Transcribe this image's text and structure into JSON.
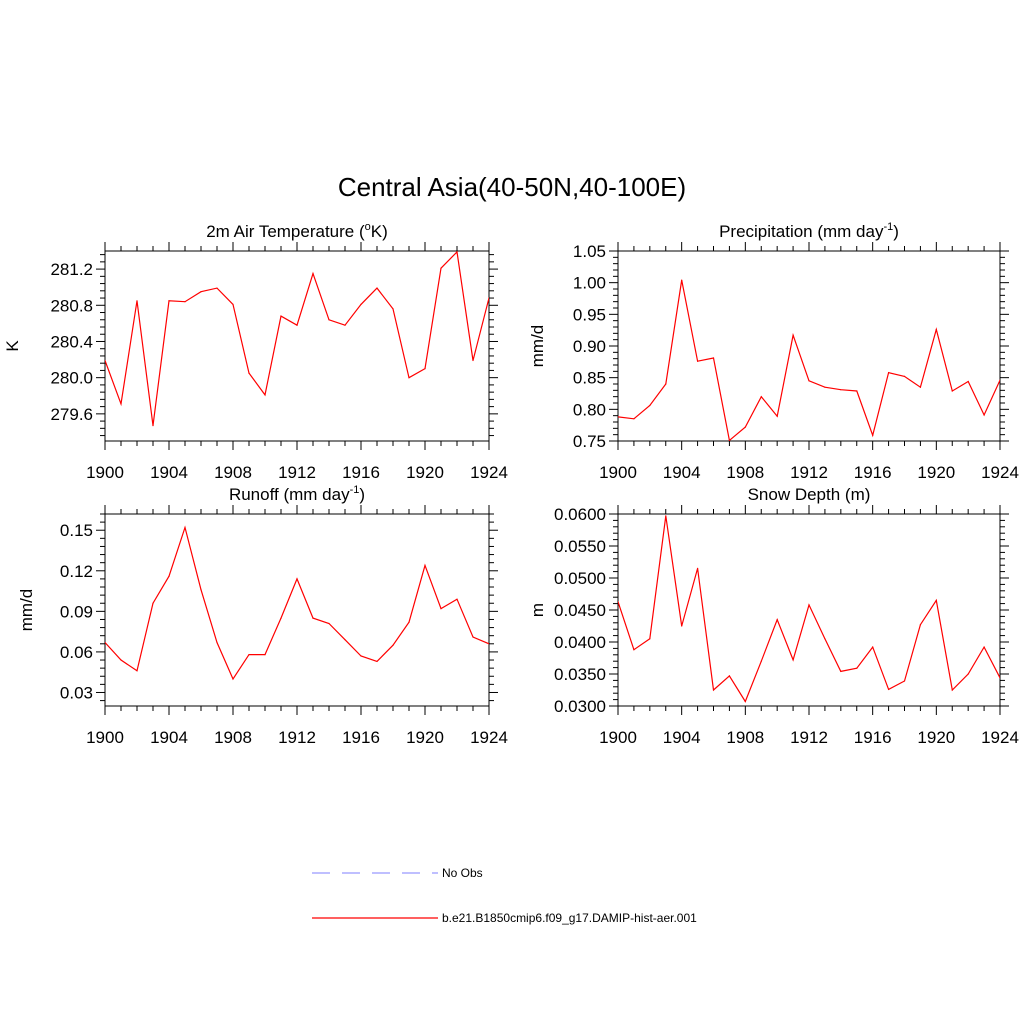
{
  "title": "Central Asia(40-50N,40-100E)",
  "chart_data": [
    {
      "type": "line",
      "title": "2m Air Temperature (",
      "title_sup": "o",
      "title_after": "K)",
      "ylabel": "K",
      "xlim": [
        1900,
        1924
      ],
      "ylim": [
        279.3,
        281.4
      ],
      "xticks": [
        "1900",
        "1904",
        "1908",
        "1912",
        "1916",
        "1920",
        "1924"
      ],
      "yticks": [
        "279.6",
        "280.0",
        "280.4",
        "280.8",
        "281.2"
      ],
      "series": [
        {
          "name": "b.e21.B1850cmip6.f09_g17.DAMIP-hist-aer.001",
          "x": [
            1900,
            1901,
            1902,
            1903,
            1904,
            1905,
            1906,
            1907,
            1908,
            1909,
            1910,
            1911,
            1912,
            1913,
            1914,
            1915,
            1916,
            1917,
            1918,
            1919,
            1920,
            1921,
            1922,
            1923,
            1924
          ],
          "values": [
            280.19,
            279.71,
            280.85,
            279.47,
            280.85,
            280.84,
            280.95,
            280.99,
            280.81,
            280.05,
            279.81,
            280.68,
            280.58,
            281.15,
            280.64,
            280.58,
            280.81,
            280.99,
            280.76,
            280.0,
            280.1,
            281.21,
            281.39,
            280.19,
            280.88
          ]
        }
      ]
    },
    {
      "type": "line",
      "title": "Precipitation (mm day",
      "title_sup": "-1",
      "title_after": ")",
      "ylabel": "mm/d",
      "xlim": [
        1900,
        1924
      ],
      "ylim": [
        0.75,
        1.05
      ],
      "xticks": [
        "1900",
        "1904",
        "1908",
        "1912",
        "1916",
        "1920",
        "1924"
      ],
      "yticks": [
        "0.75",
        "0.80",
        "0.85",
        "0.90",
        "0.95",
        "1.00",
        "1.05"
      ],
      "series": [
        {
          "name": "b.e21.B1850cmip6.f09_g17.DAMIP-hist-aer.001",
          "x": [
            1900,
            1901,
            1902,
            1903,
            1904,
            1905,
            1906,
            1907,
            1908,
            1909,
            1910,
            1911,
            1912,
            1913,
            1914,
            1915,
            1916,
            1917,
            1918,
            1919,
            1920,
            1921,
            1922,
            1923,
            1924
          ],
          "values": [
            0.788,
            0.785,
            0.806,
            0.84,
            1.004,
            0.876,
            0.881,
            0.751,
            0.772,
            0.82,
            0.789,
            0.917,
            0.845,
            0.835,
            0.831,
            0.829,
            0.759,
            0.858,
            0.852,
            0.835,
            0.926,
            0.829,
            0.844,
            0.791,
            0.846
          ]
        }
      ]
    },
    {
      "type": "line",
      "title": "Runoff (mm day",
      "title_sup": "-1",
      "title_after": ")",
      "ylabel": "mm/d",
      "xlim": [
        1900,
        1924
      ],
      "ylim": [
        0.02,
        0.162
      ],
      "xticks": [
        "1900",
        "1904",
        "1908",
        "1912",
        "1916",
        "1920",
        "1924"
      ],
      "yticks": [
        "0.03",
        "0.06",
        "0.09",
        "0.12",
        "0.15"
      ],
      "series": [
        {
          "name": "b.e21.B1850cmip6.f09_g17.DAMIP-hist-aer.001",
          "x": [
            1900,
            1901,
            1902,
            1903,
            1904,
            1905,
            1906,
            1907,
            1908,
            1909,
            1910,
            1911,
            1912,
            1913,
            1914,
            1915,
            1916,
            1917,
            1918,
            1919,
            1920,
            1921,
            1922,
            1923,
            1924
          ],
          "values": [
            0.067,
            0.054,
            0.046,
            0.096,
            0.116,
            0.152,
            0.106,
            0.067,
            0.04,
            0.058,
            0.058,
            0.085,
            0.114,
            0.085,
            0.081,
            0.069,
            0.057,
            0.053,
            0.065,
            0.082,
            0.124,
            0.092,
            0.099,
            0.071,
            0.066
          ]
        }
      ]
    },
    {
      "type": "line",
      "title": "Snow Depth (m)",
      "title_sup": "",
      "title_after": "",
      "ylabel": "m",
      "xlim": [
        1900,
        1924
      ],
      "ylim": [
        0.03,
        0.06
      ],
      "xticks": [
        "1900",
        "1904",
        "1908",
        "1912",
        "1916",
        "1920",
        "1924"
      ],
      "yticks": [
        "0.0300",
        "0.0350",
        "0.0400",
        "0.0450",
        "0.0500",
        "0.0550",
        "0.0600"
      ],
      "series": [
        {
          "name": "b.e21.B1850cmip6.f09_g17.DAMIP-hist-aer.001",
          "x": [
            1900,
            1901,
            1902,
            1903,
            1904,
            1905,
            1906,
            1907,
            1908,
            1909,
            1910,
            1911,
            1912,
            1913,
            1914,
            1915,
            1916,
            1917,
            1918,
            1919,
            1920,
            1921,
            1922,
            1923,
            1924
          ],
          "values": [
            0.0463,
            0.0388,
            0.0405,
            0.0597,
            0.0425,
            0.0515,
            0.0325,
            0.0347,
            0.0307,
            0.037,
            0.0435,
            0.0372,
            0.0458,
            0.0405,
            0.0354,
            0.0359,
            0.0392,
            0.0326,
            0.0339,
            0.0427,
            0.0465,
            0.0325,
            0.035,
            0.0392,
            0.0344
          ]
        }
      ]
    }
  ],
  "legend": [
    {
      "label": "No Obs",
      "color": "#9999ff",
      "dash": "dashed"
    },
    {
      "label": "b.e21.B1850cmip6.f09_g17.DAMIP-hist-aer.001",
      "color": "#ff0000",
      "dash": "solid"
    }
  ],
  "colors": {
    "line": "#ff0000",
    "obs": "#9999ff",
    "axis": "#000000"
  }
}
